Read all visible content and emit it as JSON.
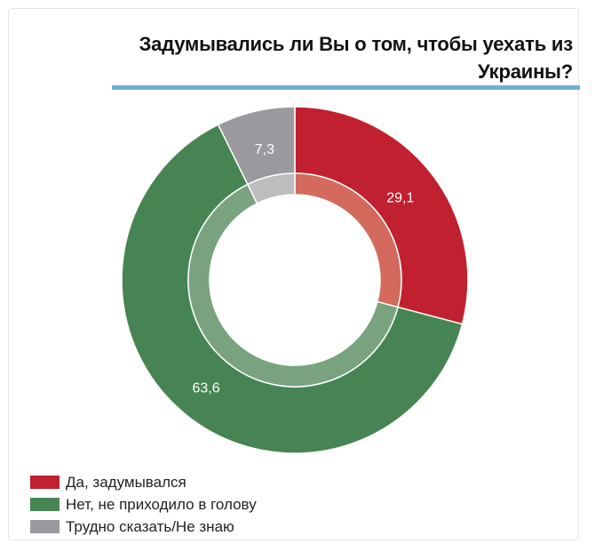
{
  "title": "Задумывались ли Вы о том, чтобы уехать из Украины?",
  "colors": {
    "yes": "#c02030",
    "no": "#468553",
    "hard": "#9a9a9e",
    "yes_inner": "#d46a5e",
    "no_inner": "#79a27f",
    "hard_inner": "#bdbdc0",
    "accent_rule": "#6faed4"
  },
  "chart_data": {
    "type": "pie",
    "donut": true,
    "title": "Задумывались ли Вы о том, чтобы уехать из Украины?",
    "legend_position": "bottom-left",
    "slices": [
      {
        "name": "Да, задумывался",
        "value": 29.1,
        "label": "29,1",
        "color": "#c02030",
        "inner_color": "#d46a5e"
      },
      {
        "name": "Нет, не приходило в голову",
        "value": 63.6,
        "label": "63,6",
        "color": "#468553",
        "inner_color": "#79a27f"
      },
      {
        "name": "Трудно сказать/Не знаю",
        "value": 7.3,
        "label": "7,3",
        "color": "#9a9a9e",
        "inner_color": "#bdbdc0"
      }
    ]
  }
}
